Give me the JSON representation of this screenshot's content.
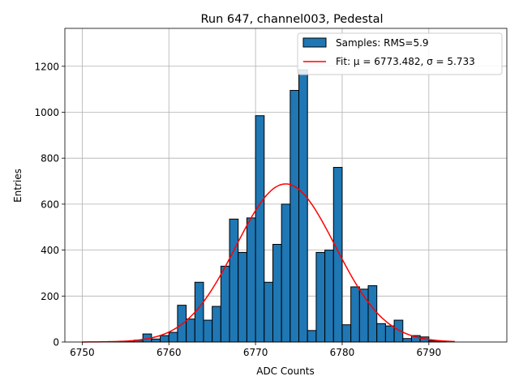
{
  "chart_data": {
    "type": "bar",
    "title": "Run 647, channel003, Pedestal",
    "xlabel": "ADC Counts",
    "ylabel": "Entries",
    "xlim": [
      6748,
      6799
    ],
    "ylim": [
      0,
      1365
    ],
    "xticks": [
      6750,
      6760,
      6770,
      6780,
      6790
    ],
    "yticks": [
      0,
      200,
      400,
      600,
      800,
      1000,
      1200
    ],
    "grid": true,
    "legend_position": "upper-right",
    "bar_color": "#1f77b4",
    "fit_color": "#ff0000",
    "bin_width": 1,
    "bins": [
      {
        "x": 6750,
        "y": 0
      },
      {
        "x": 6751,
        "y": 0
      },
      {
        "x": 6752,
        "y": 0
      },
      {
        "x": 6753,
        "y": 2
      },
      {
        "x": 6754,
        "y": 2
      },
      {
        "x": 6755,
        "y": 3
      },
      {
        "x": 6756,
        "y": 8
      },
      {
        "x": 6757,
        "y": 35
      },
      {
        "x": 6758,
        "y": 13
      },
      {
        "x": 6759,
        "y": 28
      },
      {
        "x": 6760,
        "y": 42
      },
      {
        "x": 6761,
        "y": 160
      },
      {
        "x": 6762,
        "y": 100
      },
      {
        "x": 6763,
        "y": 260
      },
      {
        "x": 6764,
        "y": 95
      },
      {
        "x": 6765,
        "y": 155
      },
      {
        "x": 6766,
        "y": 330
      },
      {
        "x": 6767,
        "y": 535
      },
      {
        "x": 6768,
        "y": 390
      },
      {
        "x": 6769,
        "y": 540
      },
      {
        "x": 6770,
        "y": 985
      },
      {
        "x": 6771,
        "y": 260
      },
      {
        "x": 6772,
        "y": 425
      },
      {
        "x": 6773,
        "y": 600
      },
      {
        "x": 6774,
        "y": 1095
      },
      {
        "x": 6775,
        "y": 1185
      },
      {
        "x": 6776,
        "y": 50
      },
      {
        "x": 6777,
        "y": 390
      },
      {
        "x": 6778,
        "y": 400
      },
      {
        "x": 6779,
        "y": 760
      },
      {
        "x": 6780,
        "y": 75
      },
      {
        "x": 6781,
        "y": 240
      },
      {
        "x": 6782,
        "y": 230
      },
      {
        "x": 6783,
        "y": 245
      },
      {
        "x": 6784,
        "y": 80
      },
      {
        "x": 6785,
        "y": 70
      },
      {
        "x": 6786,
        "y": 95
      },
      {
        "x": 6787,
        "y": 15
      },
      {
        "x": 6788,
        "y": 28
      },
      {
        "x": 6789,
        "y": 22
      },
      {
        "x": 6790,
        "y": 5
      },
      {
        "x": 6791,
        "y": 3
      },
      {
        "x": 6792,
        "y": 0
      }
    ],
    "fit": {
      "mu": 6773.482,
      "sigma": 5.733,
      "amplitude": 688,
      "x_range": [
        6750,
        6793
      ]
    },
    "legend": {
      "samples_label": "Samples: RMS=5.9",
      "fit_label": "Fit: μ = 6773.482, σ = 5.733"
    }
  }
}
